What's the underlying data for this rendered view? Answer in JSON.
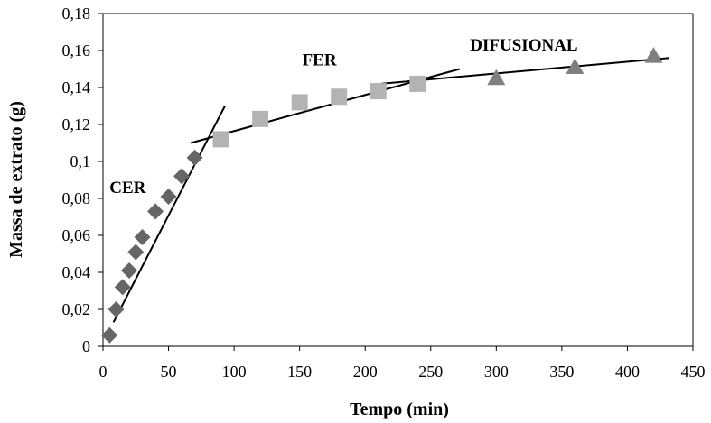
{
  "chart_data": {
    "type": "scatter",
    "xlabel": "Tempo (min)",
    "ylabel": "Massa de extrato (g)",
    "xlim": [
      0,
      450
    ],
    "ylim": [
      0,
      0.18
    ],
    "x_ticks": [
      "0",
      "50",
      "100",
      "150",
      "200",
      "250",
      "300",
      "350",
      "400",
      "450"
    ],
    "y_ticks": [
      "0",
      "0,02",
      "0,04",
      "0,06",
      "0,08",
      "0,1",
      "0,12",
      "0,14",
      "0,16",
      "0,18"
    ],
    "grid": false,
    "series": [
      {
        "marker": "diamond",
        "color": "#666666",
        "points": [
          [
            5,
            0.006
          ],
          [
            10,
            0.02
          ],
          [
            15,
            0.032
          ],
          [
            20,
            0.041
          ],
          [
            25,
            0.051
          ],
          [
            30,
            0.059
          ],
          [
            40,
            0.073
          ],
          [
            50,
            0.081
          ],
          [
            60,
            0.092
          ],
          [
            70,
            0.102
          ]
        ]
      },
      {
        "marker": "square",
        "color": "#b3b3b3",
        "points": [
          [
            90,
            0.112
          ],
          [
            120,
            0.123
          ],
          [
            150,
            0.132
          ],
          [
            180,
            0.135
          ],
          [
            210,
            0.138
          ],
          [
            240,
            0.142
          ]
        ]
      },
      {
        "marker": "triangle",
        "color": "#7f7f7f",
        "points": [
          [
            300,
            0.145
          ],
          [
            360,
            0.151
          ],
          [
            420,
            0.157
          ]
        ]
      }
    ],
    "trend_lines": [
      {
        "from": [
          8,
          0.013
        ],
        "to": [
          93,
          0.13
        ]
      },
      {
        "from": [
          67,
          0.11
        ],
        "to": [
          272,
          0.15
        ]
      },
      {
        "from": [
          212,
          0.142
        ],
        "to": [
          432,
          0.156
        ]
      }
    ],
    "annotations": [
      {
        "text": "CER",
        "x": 5,
        "y": 0.083
      },
      {
        "text": "FER",
        "x": 152,
        "y": 0.152
      },
      {
        "text": "DIFUSIONAL",
        "x": 280,
        "y": 0.16
      }
    ]
  }
}
